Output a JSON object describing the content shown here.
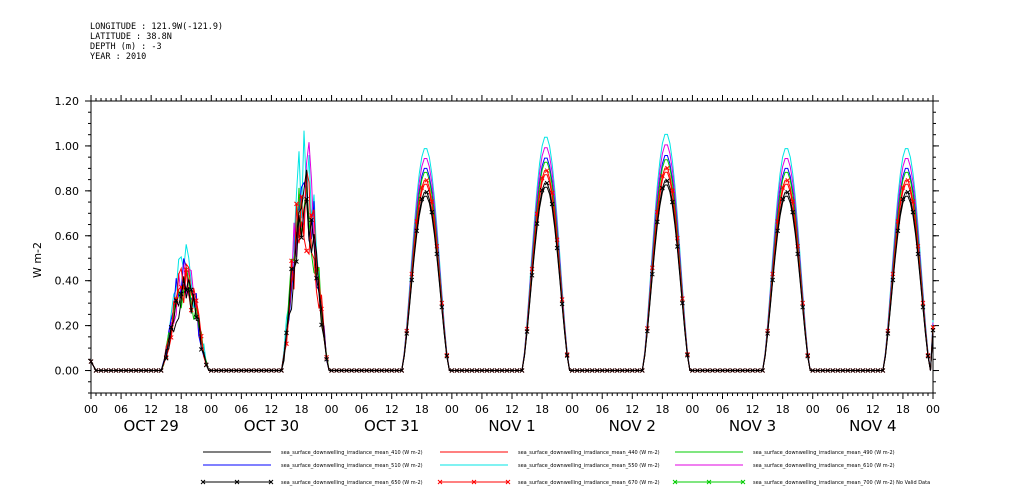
{
  "header": {
    "line1": "LONGITUDE : 121.9W(-121.9)",
    "line2": "LATITUDE : 38.8N",
    "line3": "DEPTH (m) : -3",
    "line4": "YEAR : 2010"
  },
  "chart_data": {
    "type": "line",
    "ylabel": "W m-2",
    "ylim": [
      -0.1,
      1.2
    ],
    "yticks": [
      "0.00",
      "0.20",
      "0.40",
      "0.60",
      "0.80",
      "1.00",
      "1.20"
    ],
    "xlim_hours": [
      0,
      168
    ],
    "hour_tick_labels": [
      "00",
      "06",
      "12",
      "18",
      "00",
      "06",
      "12",
      "18",
      "00",
      "06",
      "12",
      "18",
      "00",
      "06",
      "12",
      "18",
      "00",
      "06",
      "12",
      "18",
      "00",
      "06",
      "12",
      "18",
      "00",
      "06",
      "12",
      "18",
      "00"
    ],
    "day_labels": [
      "OCT 29",
      "OCT 30",
      "OCT 31",
      "NOV 1",
      "NOV 2",
      "NOV 3",
      "NOV 4"
    ],
    "daily_peaks": [
      {
        "day": "OCT 29",
        "peak_410": 0.38,
        "peak_670": 0.45,
        "peak_550": 0.62
      },
      {
        "day": "OCT 30",
        "peak_410": 0.75,
        "peak_670": 0.92,
        "peak_550": 1.07
      },
      {
        "day": "OCT 31",
        "peak_410": 0.78,
        "peak_670": 0.86,
        "peak_550": 1.01
      },
      {
        "day": "NOV 1",
        "peak_410": 0.82,
        "peak_670": 0.91,
        "peak_550": 1.07
      },
      {
        "day": "NOV 2",
        "peak_410": 0.83,
        "peak_670": 0.95,
        "peak_550": 1.1
      },
      {
        "day": "NOV 3",
        "peak_410": 0.78,
        "peak_670": 0.88,
        "peak_550": 1.06
      },
      {
        "day": "NOV 4",
        "peak_410": 0.78,
        "peak_670": 0.88,
        "peak_550": 1.02
      }
    ],
    "series": [
      {
        "name": "sea_surface_downwelling_irradiance_mean_410 (W m-2)",
        "color": "#000000",
        "marker": "none",
        "scale": 0.88
      },
      {
        "name": "sea_surface_downwelling_irradiance_mean_440 (W m-2)",
        "color": "#ff0000",
        "marker": "none",
        "scale": 0.94
      },
      {
        "name": "sea_surface_downwelling_irradiance_mean_490 (W m-2)",
        "color": "#00cc00",
        "marker": "none",
        "scale": 1.0
      },
      {
        "name": "sea_surface_downwelling_irradiance_mean_510 (W m-2)",
        "color": "#0000ff",
        "marker": "none",
        "scale": 1.02
      },
      {
        "name": "sea_surface_downwelling_irradiance_mean_550 (W m-2)",
        "color": "#00e5e5",
        "marker": "none",
        "scale": 1.12
      },
      {
        "name": "sea_surface_downwelling_irradiance_mean_610 (W m-2)",
        "color": "#e000e0",
        "marker": "none",
        "scale": 1.07
      },
      {
        "name": "sea_surface_downwelling_irradiance_mean_650 (W m-2)",
        "color": "#000000",
        "marker": "x",
        "scale": 0.9
      },
      {
        "name": "sea_surface_downwelling_irradiance_mean_670 (W m-2)",
        "color": "#ff0000",
        "marker": "x",
        "scale": 0.96
      },
      {
        "name": "sea_surface_downwelling_irradiance_mean_700 (W m-2) No Valid Data",
        "color": "#00cc00",
        "marker": "x",
        "scale": 0
      }
    ]
  }
}
